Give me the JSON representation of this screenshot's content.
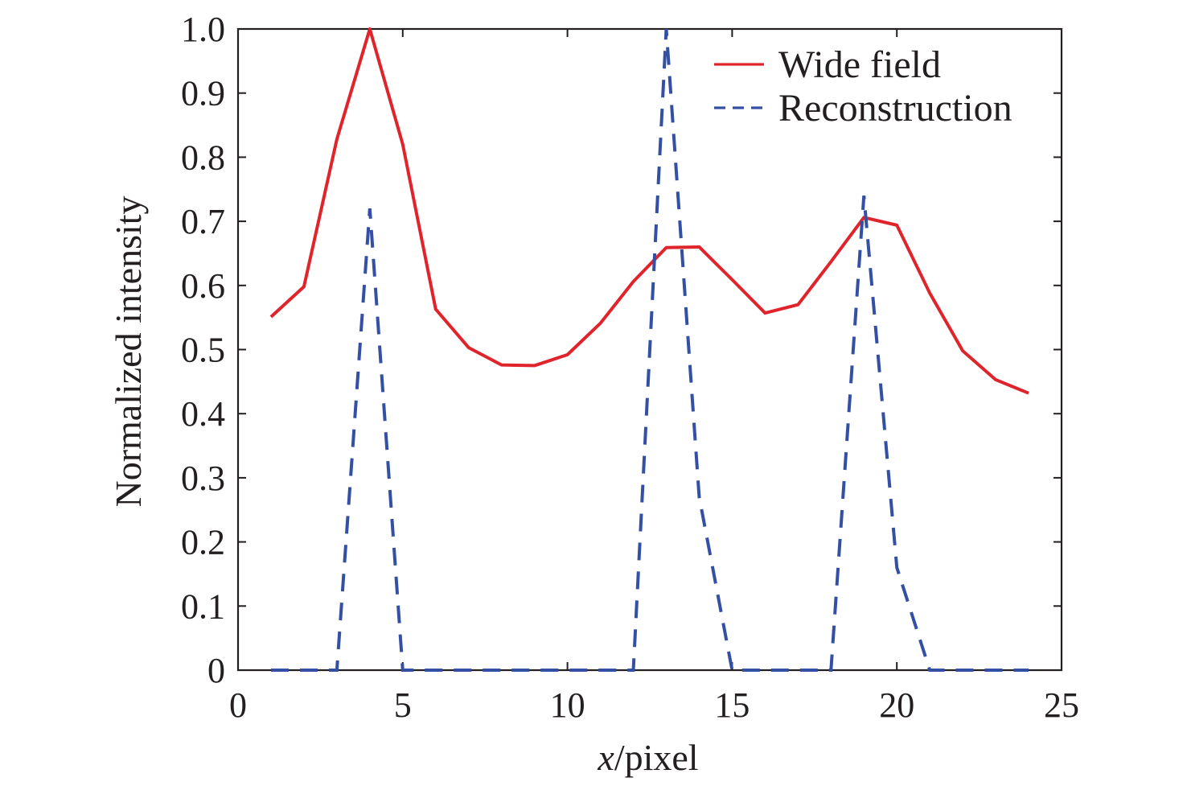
{
  "chart_data": {
    "type": "line",
    "title": "",
    "xlabel_italic": "x",
    "xlabel_rest": "/pixel",
    "ylabel": "Normalized intensity",
    "xlim": [
      0,
      25
    ],
    "ylim": [
      0,
      1.0
    ],
    "xticks": [
      0,
      5,
      10,
      15,
      20,
      25
    ],
    "xtick_labels": [
      "0",
      "5",
      "10",
      "15",
      "20",
      "25"
    ],
    "yticks": [
      0,
      0.1,
      0.2,
      0.3,
      0.4,
      0.5,
      0.6,
      0.7,
      0.8,
      0.9,
      1.0
    ],
    "ytick_labels": [
      "0",
      "0.1",
      "0.2",
      "0.3",
      "0.4",
      "0.5",
      "0.6",
      "0.7",
      "0.8",
      "0.9",
      "1.0"
    ],
    "grid": false,
    "legend_position": "top-right",
    "series": [
      {
        "name": "Wide field",
        "style": "solid",
        "color": "#e0242b",
        "x": [
          1,
          2,
          3,
          4,
          5,
          6,
          7,
          8,
          9,
          10,
          11,
          12,
          13,
          14,
          15,
          16,
          17,
          18,
          19,
          20,
          21,
          22,
          23,
          24
        ],
        "values": [
          0.551,
          0.598,
          0.828,
          1.0,
          0.82,
          0.563,
          0.503,
          0.476,
          0.475,
          0.492,
          0.541,
          0.606,
          0.659,
          0.66,
          0.609,
          0.557,
          0.57,
          0.637,
          0.706,
          0.694,
          0.588,
          0.498,
          0.453,
          0.432
        ]
      },
      {
        "name": "Reconstruction",
        "style": "dashed",
        "color": "#3450a4",
        "x": [
          1,
          2,
          3,
          4,
          5,
          6,
          7,
          8,
          9,
          10,
          11,
          12,
          13,
          14,
          15,
          16,
          17,
          18,
          19,
          20,
          21,
          22,
          23,
          24
        ],
        "values": [
          0,
          0,
          0,
          0.72,
          0,
          0,
          0,
          0,
          0,
          0,
          0,
          0,
          1.0,
          0.27,
          0,
          0,
          0,
          0,
          0.74,
          0.16,
          0,
          0,
          0,
          0
        ]
      }
    ]
  }
}
